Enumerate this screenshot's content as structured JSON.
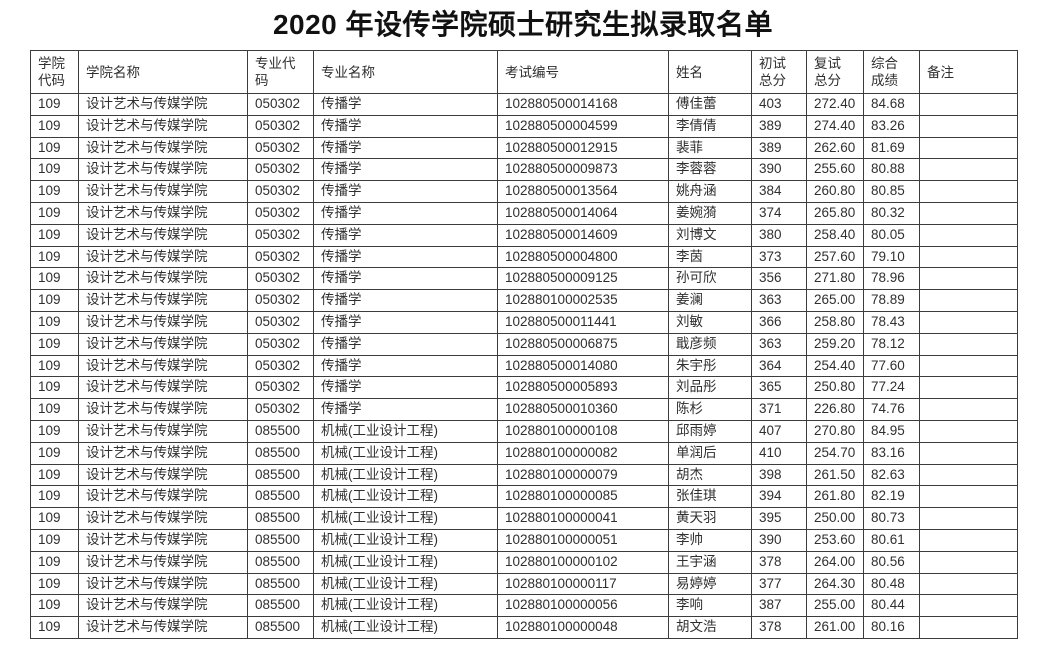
{
  "title": "2020 年设传学院硕士研究生拟录取名单",
  "table": {
    "columns": [
      {
        "key": "college_code",
        "label": "学院\n代码"
      },
      {
        "key": "college_name",
        "label": "学院名称"
      },
      {
        "key": "major_code",
        "label": "专业代\n码"
      },
      {
        "key": "major_name",
        "label": "专业名称"
      },
      {
        "key": "exam_id",
        "label": "考试编号"
      },
      {
        "key": "name",
        "label": "姓名"
      },
      {
        "key": "initial_score",
        "label": "初试\n总分"
      },
      {
        "key": "retest_score",
        "label": "复试\n总分"
      },
      {
        "key": "overall_score",
        "label": "综合\n成绩"
      },
      {
        "key": "remarks",
        "label": "备注"
      }
    ],
    "rows": [
      [
        "109",
        "设计艺术与传媒学院",
        "050302",
        "传播学",
        "102880500014168",
        "傅佳蕾",
        "403",
        "272.40",
        "84.68",
        ""
      ],
      [
        "109",
        "设计艺术与传媒学院",
        "050302",
        "传播学",
        "102880500004599",
        "李倩倩",
        "389",
        "274.40",
        "83.26",
        ""
      ],
      [
        "109",
        "设计艺术与传媒学院",
        "050302",
        "传播学",
        "102880500012915",
        "裴菲",
        "389",
        "262.60",
        "81.69",
        ""
      ],
      [
        "109",
        "设计艺术与传媒学院",
        "050302",
        "传播学",
        "102880500009873",
        "李蓉蓉",
        "390",
        "255.60",
        "80.88",
        ""
      ],
      [
        "109",
        "设计艺术与传媒学院",
        "050302",
        "传播学",
        "102880500013564",
        "姚舟涵",
        "384",
        "260.80",
        "80.85",
        ""
      ],
      [
        "109",
        "设计艺术与传媒学院",
        "050302",
        "传播学",
        "102880500014064",
        "姜婉漪",
        "374",
        "265.80",
        "80.32",
        ""
      ],
      [
        "109",
        "设计艺术与传媒学院",
        "050302",
        "传播学",
        "102880500014609",
        "刘博文",
        "380",
        "258.40",
        "80.05",
        ""
      ],
      [
        "109",
        "设计艺术与传媒学院",
        "050302",
        "传播学",
        "102880500004800",
        "李茵",
        "373",
        "257.60",
        "79.10",
        ""
      ],
      [
        "109",
        "设计艺术与传媒学院",
        "050302",
        "传播学",
        "102880500009125",
        "孙可欣",
        "356",
        "271.80",
        "78.96",
        ""
      ],
      [
        "109",
        "设计艺术与传媒学院",
        "050302",
        "传播学",
        "102880100002535",
        "姜澜",
        "363",
        "265.00",
        "78.89",
        ""
      ],
      [
        "109",
        "设计艺术与传媒学院",
        "050302",
        "传播学",
        "102880500011441",
        "刘敏",
        "366",
        "258.80",
        "78.43",
        ""
      ],
      [
        "109",
        "设计艺术与传媒学院",
        "050302",
        "传播学",
        "102880500006875",
        "戢彦频",
        "363",
        "259.20",
        "78.12",
        ""
      ],
      [
        "109",
        "设计艺术与传媒学院",
        "050302",
        "传播学",
        "102880500014080",
        "朱宇彤",
        "364",
        "254.40",
        "77.60",
        ""
      ],
      [
        "109",
        "设计艺术与传媒学院",
        "050302",
        "传播学",
        "102880500005893",
        "刘品彤",
        "365",
        "250.80",
        "77.24",
        ""
      ],
      [
        "109",
        "设计艺术与传媒学院",
        "050302",
        "传播学",
        "102880500010360",
        "陈杉",
        "371",
        "226.80",
        "74.76",
        ""
      ],
      [
        "109",
        "设计艺术与传媒学院",
        "085500",
        "机械(工业设计工程)",
        "102880100000108",
        "邱雨婷",
        "407",
        "270.80",
        "84.95",
        ""
      ],
      [
        "109",
        "设计艺术与传媒学院",
        "085500",
        "机械(工业设计工程)",
        "102880100000082",
        "单润后",
        "410",
        "254.70",
        "83.16",
        ""
      ],
      [
        "109",
        "设计艺术与传媒学院",
        "085500",
        "机械(工业设计工程)",
        "102880100000079",
        "胡杰",
        "398",
        "261.50",
        "82.63",
        ""
      ],
      [
        "109",
        "设计艺术与传媒学院",
        "085500",
        "机械(工业设计工程)",
        "102880100000085",
        "张佳琪",
        "394",
        "261.80",
        "82.19",
        ""
      ],
      [
        "109",
        "设计艺术与传媒学院",
        "085500",
        "机械(工业设计工程)",
        "102880100000041",
        "黄天羽",
        "395",
        "250.00",
        "80.73",
        ""
      ],
      [
        "109",
        "设计艺术与传媒学院",
        "085500",
        "机械(工业设计工程)",
        "102880100000051",
        "李帅",
        "390",
        "253.60",
        "80.61",
        ""
      ],
      [
        "109",
        "设计艺术与传媒学院",
        "085500",
        "机械(工业设计工程)",
        "102880100000102",
        "王宇涵",
        "378",
        "264.00",
        "80.56",
        ""
      ],
      [
        "109",
        "设计艺术与传媒学院",
        "085500",
        "机械(工业设计工程)",
        "102880100000117",
        "易婷婷",
        "377",
        "264.30",
        "80.48",
        ""
      ],
      [
        "109",
        "设计艺术与传媒学院",
        "085500",
        "机械(工业设计工程)",
        "102880100000056",
        "李响",
        "387",
        "255.00",
        "80.44",
        ""
      ],
      [
        "109",
        "设计艺术与传媒学院",
        "085500",
        "机械(工业设计工程)",
        "102880100000048",
        "胡文浩",
        "378",
        "261.00",
        "80.16",
        ""
      ]
    ]
  }
}
